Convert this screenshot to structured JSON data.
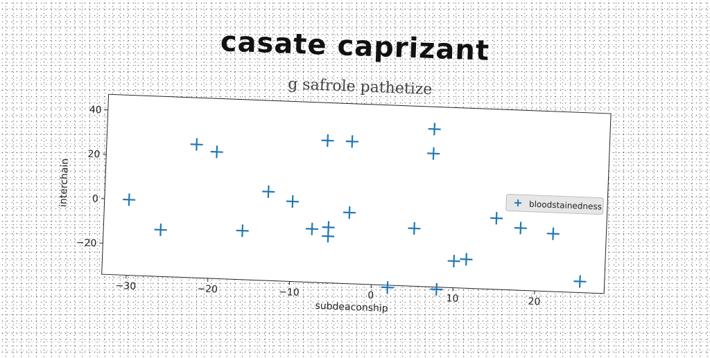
{
  "figure": {
    "title": "casate caprizant"
  },
  "chart_data": {
    "type": "scatter",
    "title": "g safrole pathetize",
    "xlabel": "subdeaconship",
    "ylabel": "interchain",
    "xlim": [
      -33,
      28.5
    ],
    "ylim": [
      -34,
      47
    ],
    "xticks": [
      -30,
      -20,
      -10,
      0,
      10,
      20
    ],
    "yticks": [
      -20,
      0,
      20,
      40
    ],
    "grid": false,
    "legend_position": "right",
    "series": [
      {
        "name": "bloodstainedness",
        "marker": "+",
        "color": "#1f77b4",
        "points": [
          {
            "x": -30,
            "y": 0
          },
          {
            "x": -26,
            "y": -13
          },
          {
            "x": -22,
            "y": 26
          },
          {
            "x": -19.5,
            "y": 23
          },
          {
            "x": -16,
            "y": -12
          },
          {
            "x": -13,
            "y": 6
          },
          {
            "x": -10,
            "y": 2
          },
          {
            "x": -7.5,
            "y": -10
          },
          {
            "x": -6,
            "y": 30
          },
          {
            "x": -5.5,
            "y": -9
          },
          {
            "x": -5.5,
            "y": -13
          },
          {
            "x": -3,
            "y": 30
          },
          {
            "x": -3,
            "y": -2
          },
          {
            "x": 2,
            "y": -35
          },
          {
            "x": 5,
            "y": -8
          },
          {
            "x": 7,
            "y": 37
          },
          {
            "x": 7,
            "y": 26
          },
          {
            "x": 8,
            "y": -35
          },
          {
            "x": 10,
            "y": -22
          },
          {
            "x": 11.5,
            "y": -21
          },
          {
            "x": 15,
            "y": -2
          },
          {
            "x": 18,
            "y": -6
          },
          {
            "x": 22,
            "y": -8
          },
          {
            "x": 25.5,
            "y": -29
          }
        ]
      }
    ]
  }
}
